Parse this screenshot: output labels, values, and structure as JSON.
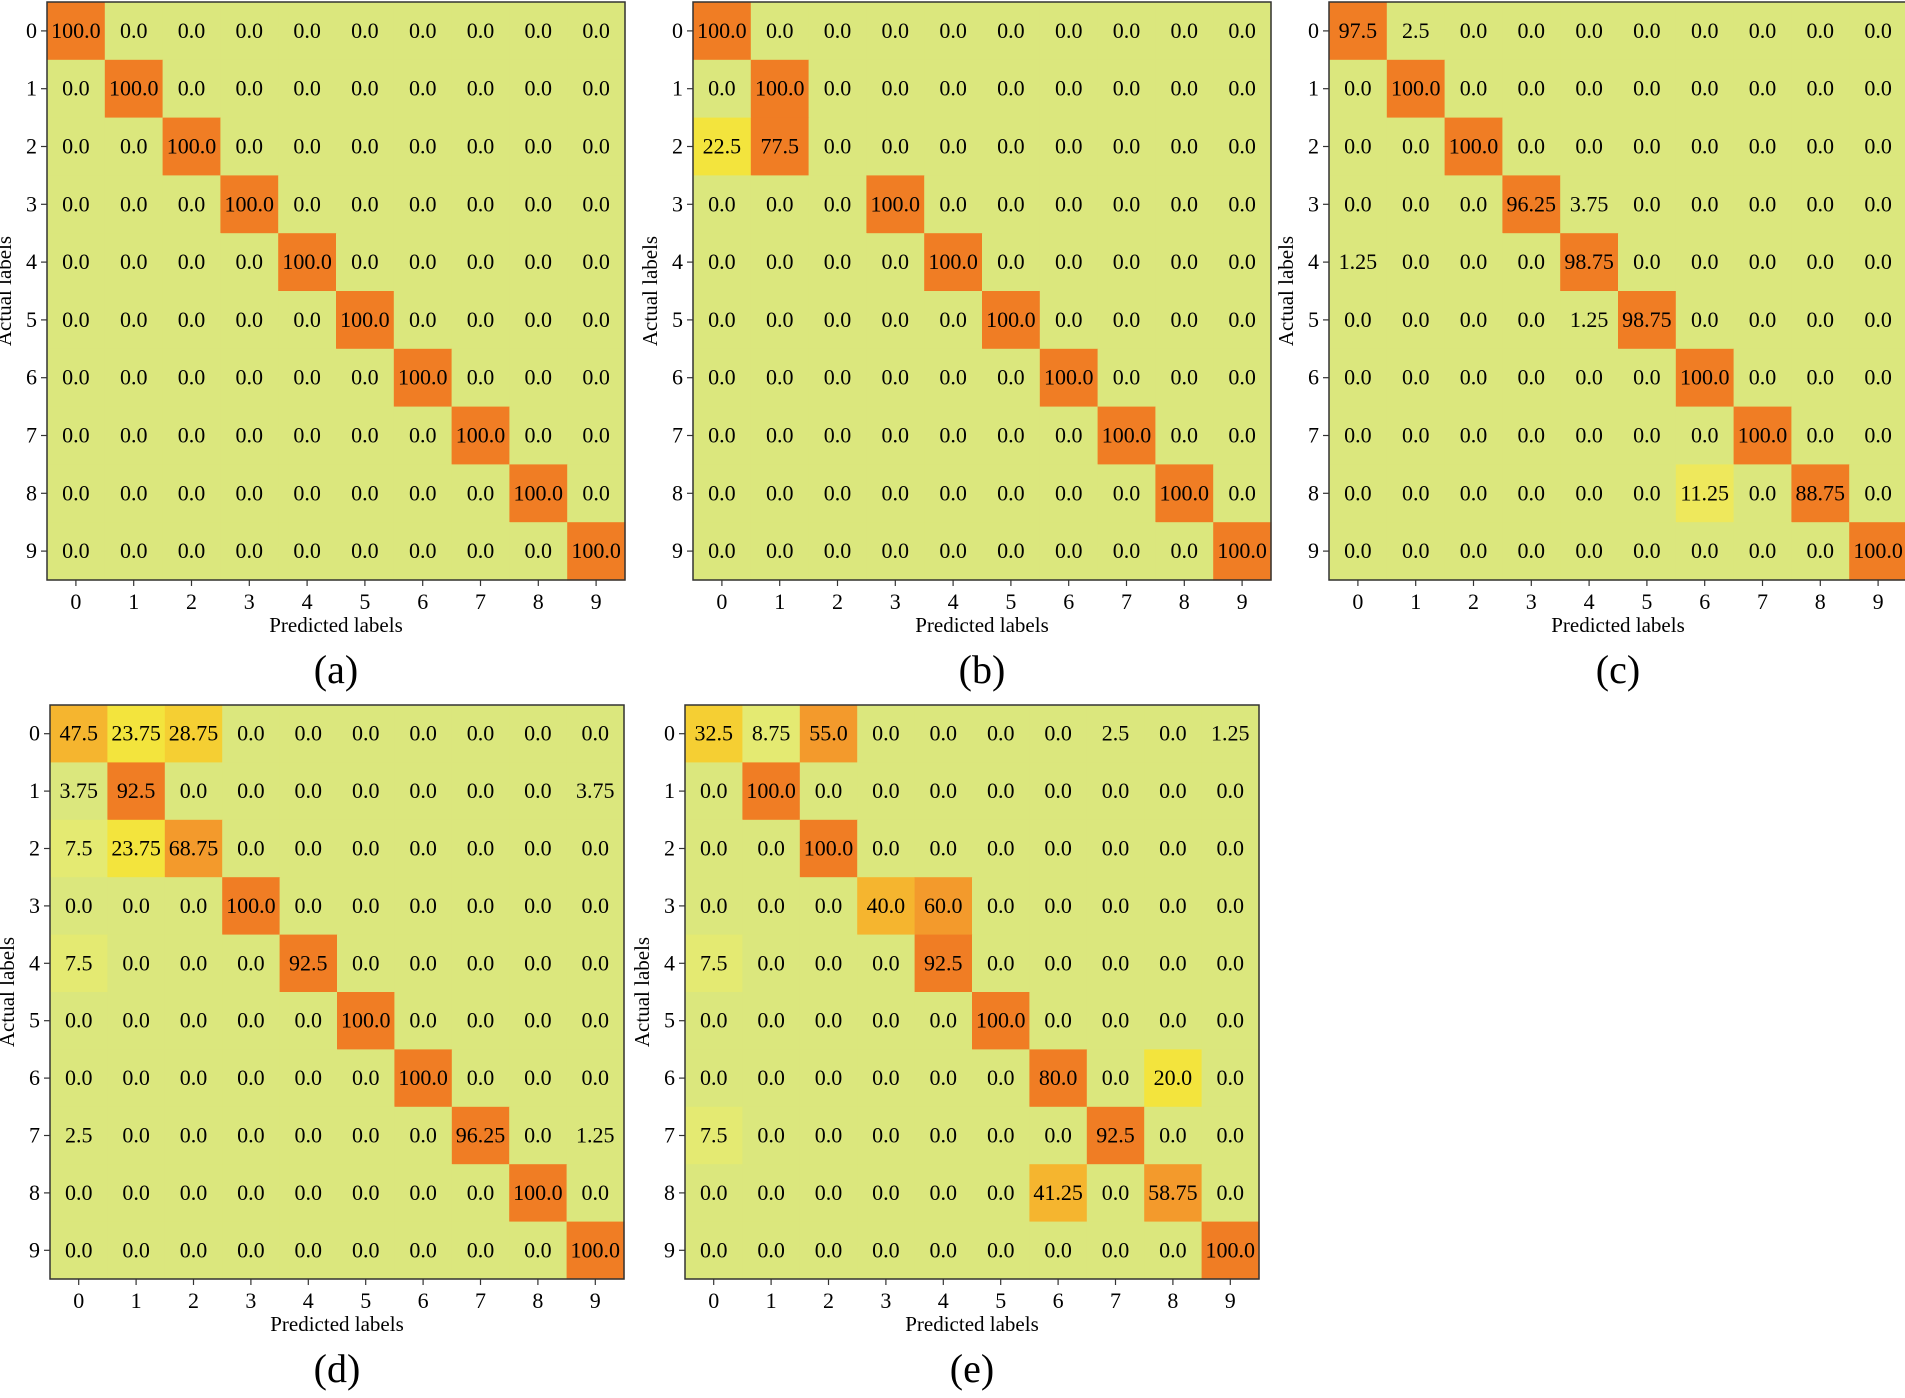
{
  "colors": {
    "background": "#ffffff",
    "low": "#dbe77d",
    "mid": "#f4e847",
    "high": "#f07d24",
    "frame": "#333333",
    "text": "#000000"
  },
  "chart_data": [
    {
      "type": "heatmap",
      "panel": "(a)",
      "xlabel": "Predicted labels",
      "ylabel": "Actual labels",
      "x_ticks": [
        "0",
        "1",
        "2",
        "3",
        "4",
        "5",
        "6",
        "7",
        "8",
        "9"
      ],
      "y_ticks": [
        "0",
        "1",
        "2",
        "3",
        "4",
        "5",
        "6",
        "7",
        "8",
        "9"
      ],
      "values": [
        [
          "100.0",
          "0.0",
          "0.0",
          "0.0",
          "0.0",
          "0.0",
          "0.0",
          "0.0",
          "0.0",
          "0.0"
        ],
        [
          "0.0",
          "100.0",
          "0.0",
          "0.0",
          "0.0",
          "0.0",
          "0.0",
          "0.0",
          "0.0",
          "0.0"
        ],
        [
          "0.0",
          "0.0",
          "100.0",
          "0.0",
          "0.0",
          "0.0",
          "0.0",
          "0.0",
          "0.0",
          "0.0"
        ],
        [
          "0.0",
          "0.0",
          "0.0",
          "100.0",
          "0.0",
          "0.0",
          "0.0",
          "0.0",
          "0.0",
          "0.0"
        ],
        [
          "0.0",
          "0.0",
          "0.0",
          "0.0",
          "100.0",
          "0.0",
          "0.0",
          "0.0",
          "0.0",
          "0.0"
        ],
        [
          "0.0",
          "0.0",
          "0.0",
          "0.0",
          "0.0",
          "100.0",
          "0.0",
          "0.0",
          "0.0",
          "0.0"
        ],
        [
          "0.0",
          "0.0",
          "0.0",
          "0.0",
          "0.0",
          "0.0",
          "100.0",
          "0.0",
          "0.0",
          "0.0"
        ],
        [
          "0.0",
          "0.0",
          "0.0",
          "0.0",
          "0.0",
          "0.0",
          "0.0",
          "100.0",
          "0.0",
          "0.0"
        ],
        [
          "0.0",
          "0.0",
          "0.0",
          "0.0",
          "0.0",
          "0.0",
          "0.0",
          "0.0",
          "100.0",
          "0.0"
        ],
        [
          "0.0",
          "0.0",
          "0.0",
          "0.0",
          "0.0",
          "0.0",
          "0.0",
          "0.0",
          "0.0",
          "100.0"
        ]
      ]
    },
    {
      "type": "heatmap",
      "panel": "(b)",
      "xlabel": "Predicted labels",
      "ylabel": "Actual labels",
      "x_ticks": [
        "0",
        "1",
        "2",
        "3",
        "4",
        "5",
        "6",
        "7",
        "8",
        "9"
      ],
      "y_ticks": [
        "0",
        "1",
        "2",
        "3",
        "4",
        "5",
        "6",
        "7",
        "8",
        "9"
      ],
      "values": [
        [
          "100.0",
          "0.0",
          "0.0",
          "0.0",
          "0.0",
          "0.0",
          "0.0",
          "0.0",
          "0.0",
          "0.0"
        ],
        [
          "0.0",
          "100.0",
          "0.0",
          "0.0",
          "0.0",
          "0.0",
          "0.0",
          "0.0",
          "0.0",
          "0.0"
        ],
        [
          "22.5",
          "77.5",
          "0.0",
          "0.0",
          "0.0",
          "0.0",
          "0.0",
          "0.0",
          "0.0",
          "0.0"
        ],
        [
          "0.0",
          "0.0",
          "0.0",
          "100.0",
          "0.0",
          "0.0",
          "0.0",
          "0.0",
          "0.0",
          "0.0"
        ],
        [
          "0.0",
          "0.0",
          "0.0",
          "0.0",
          "100.0",
          "0.0",
          "0.0",
          "0.0",
          "0.0",
          "0.0"
        ],
        [
          "0.0",
          "0.0",
          "0.0",
          "0.0",
          "0.0",
          "100.0",
          "0.0",
          "0.0",
          "0.0",
          "0.0"
        ],
        [
          "0.0",
          "0.0",
          "0.0",
          "0.0",
          "0.0",
          "0.0",
          "100.0",
          "0.0",
          "0.0",
          "0.0"
        ],
        [
          "0.0",
          "0.0",
          "0.0",
          "0.0",
          "0.0",
          "0.0",
          "0.0",
          "100.0",
          "0.0",
          "0.0"
        ],
        [
          "0.0",
          "0.0",
          "0.0",
          "0.0",
          "0.0",
          "0.0",
          "0.0",
          "0.0",
          "100.0",
          "0.0"
        ],
        [
          "0.0",
          "0.0",
          "0.0",
          "0.0",
          "0.0",
          "0.0",
          "0.0",
          "0.0",
          "0.0",
          "100.0"
        ]
      ]
    },
    {
      "type": "heatmap",
      "panel": "(c)",
      "xlabel": "Predicted labels",
      "ylabel": "Actual labels",
      "x_ticks": [
        "0",
        "1",
        "2",
        "3",
        "4",
        "5",
        "6",
        "7",
        "8",
        "9"
      ],
      "y_ticks": [
        "0",
        "1",
        "2",
        "3",
        "4",
        "5",
        "6",
        "7",
        "8",
        "9"
      ],
      "values": [
        [
          "97.5",
          "2.5",
          "0.0",
          "0.0",
          "0.0",
          "0.0",
          "0.0",
          "0.0",
          "0.0",
          "0.0"
        ],
        [
          "0.0",
          "100.0",
          "0.0",
          "0.0",
          "0.0",
          "0.0",
          "0.0",
          "0.0",
          "0.0",
          "0.0"
        ],
        [
          "0.0",
          "0.0",
          "100.0",
          "0.0",
          "0.0",
          "0.0",
          "0.0",
          "0.0",
          "0.0",
          "0.0"
        ],
        [
          "0.0",
          "0.0",
          "0.0",
          "96.25",
          "3.75",
          "0.0",
          "0.0",
          "0.0",
          "0.0",
          "0.0"
        ],
        [
          "1.25",
          "0.0",
          "0.0",
          "0.0",
          "98.75",
          "0.0",
          "0.0",
          "0.0",
          "0.0",
          "0.0"
        ],
        [
          "0.0",
          "0.0",
          "0.0",
          "0.0",
          "1.25",
          "98.75",
          "0.0",
          "0.0",
          "0.0",
          "0.0"
        ],
        [
          "0.0",
          "0.0",
          "0.0",
          "0.0",
          "0.0",
          "0.0",
          "100.0",
          "0.0",
          "0.0",
          "0.0"
        ],
        [
          "0.0",
          "0.0",
          "0.0",
          "0.0",
          "0.0",
          "0.0",
          "0.0",
          "100.0",
          "0.0",
          "0.0"
        ],
        [
          "0.0",
          "0.0",
          "0.0",
          "0.0",
          "0.0",
          "0.0",
          "11.25",
          "0.0",
          "88.75",
          "0.0"
        ],
        [
          "0.0",
          "0.0",
          "0.0",
          "0.0",
          "0.0",
          "0.0",
          "0.0",
          "0.0",
          "0.0",
          "100.0"
        ]
      ]
    },
    {
      "type": "heatmap",
      "panel": "(d)",
      "xlabel": "Predicted labels",
      "ylabel": "Actual labels",
      "x_ticks": [
        "0",
        "1",
        "2",
        "3",
        "4",
        "5",
        "6",
        "7",
        "8",
        "9"
      ],
      "y_ticks": [
        "0",
        "1",
        "2",
        "3",
        "4",
        "5",
        "6",
        "7",
        "8",
        "9"
      ],
      "values": [
        [
          "47.5",
          "23.75",
          "28.75",
          "0.0",
          "0.0",
          "0.0",
          "0.0",
          "0.0",
          "0.0",
          "0.0"
        ],
        [
          "3.75",
          "92.5",
          "0.0",
          "0.0",
          "0.0",
          "0.0",
          "0.0",
          "0.0",
          "0.0",
          "3.75"
        ],
        [
          "7.5",
          "23.75",
          "68.75",
          "0.0",
          "0.0",
          "0.0",
          "0.0",
          "0.0",
          "0.0",
          "0.0"
        ],
        [
          "0.0",
          "0.0",
          "0.0",
          "100.0",
          "0.0",
          "0.0",
          "0.0",
          "0.0",
          "0.0",
          "0.0"
        ],
        [
          "7.5",
          "0.0",
          "0.0",
          "0.0",
          "92.5",
          "0.0",
          "0.0",
          "0.0",
          "0.0",
          "0.0"
        ],
        [
          "0.0",
          "0.0",
          "0.0",
          "0.0",
          "0.0",
          "100.0",
          "0.0",
          "0.0",
          "0.0",
          "0.0"
        ],
        [
          "0.0",
          "0.0",
          "0.0",
          "0.0",
          "0.0",
          "0.0",
          "100.0",
          "0.0",
          "0.0",
          "0.0"
        ],
        [
          "2.5",
          "0.0",
          "0.0",
          "0.0",
          "0.0",
          "0.0",
          "0.0",
          "96.25",
          "0.0",
          "1.25"
        ],
        [
          "0.0",
          "0.0",
          "0.0",
          "0.0",
          "0.0",
          "0.0",
          "0.0",
          "0.0",
          "100.0",
          "0.0"
        ],
        [
          "0.0",
          "0.0",
          "0.0",
          "0.0",
          "0.0",
          "0.0",
          "0.0",
          "0.0",
          "0.0",
          "100.0"
        ]
      ]
    },
    {
      "type": "heatmap",
      "panel": "(e)",
      "xlabel": "Predicted labels",
      "ylabel": "Actual labels",
      "x_ticks": [
        "0",
        "1",
        "2",
        "3",
        "4",
        "5",
        "6",
        "7",
        "8",
        "9"
      ],
      "y_ticks": [
        "0",
        "1",
        "2",
        "3",
        "4",
        "5",
        "6",
        "7",
        "8",
        "9"
      ],
      "values": [
        [
          "32.5",
          "8.75",
          "55.0",
          "0.0",
          "0.0",
          "0.0",
          "0.0",
          "2.5",
          "0.0",
          "1.25"
        ],
        [
          "0.0",
          "100.0",
          "0.0",
          "0.0",
          "0.0",
          "0.0",
          "0.0",
          "0.0",
          "0.0",
          "0.0"
        ],
        [
          "0.0",
          "0.0",
          "100.0",
          "0.0",
          "0.0",
          "0.0",
          "0.0",
          "0.0",
          "0.0",
          "0.0"
        ],
        [
          "0.0",
          "0.0",
          "0.0",
          "40.0",
          "60.0",
          "0.0",
          "0.0",
          "0.0",
          "0.0",
          "0.0"
        ],
        [
          "7.5",
          "0.0",
          "0.0",
          "0.0",
          "92.5",
          "0.0",
          "0.0",
          "0.0",
          "0.0",
          "0.0"
        ],
        [
          "0.0",
          "0.0",
          "0.0",
          "0.0",
          "0.0",
          "100.0",
          "0.0",
          "0.0",
          "0.0",
          "0.0"
        ],
        [
          "0.0",
          "0.0",
          "0.0",
          "0.0",
          "0.0",
          "0.0",
          "80.0",
          "0.0",
          "20.0",
          "0.0"
        ],
        [
          "7.5",
          "0.0",
          "0.0",
          "0.0",
          "0.0",
          "0.0",
          "0.0",
          "92.5",
          "0.0",
          "0.0"
        ],
        [
          "0.0",
          "0.0",
          "0.0",
          "0.0",
          "0.0",
          "0.0",
          "41.25",
          "0.0",
          "58.75",
          "0.0"
        ],
        [
          "0.0",
          "0.0",
          "0.0",
          "0.0",
          "0.0",
          "0.0",
          "0.0",
          "0.0",
          "0.0",
          "100.0"
        ]
      ]
    }
  ]
}
